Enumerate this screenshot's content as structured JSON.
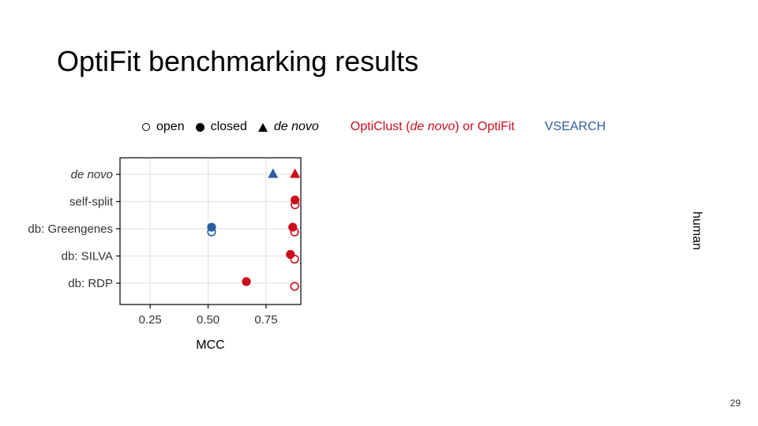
{
  "slide": {
    "title": "OptiFit benchmarking results",
    "page_number": "29"
  },
  "legend": {
    "open": "open",
    "closed": "closed",
    "de_novo": "de novo",
    "red_prefix": "OptiClust (",
    "red_italic": "de novo",
    "red_suffix": ") or OptiFit",
    "blue": "VSEARCH"
  },
  "colors": {
    "red": "#cc0f1c",
    "blue": "#2c5da3",
    "grid": "#e3e3e3",
    "axis": "#000000"
  },
  "chart_data": {
    "type": "scatter",
    "xlabel": "MCC",
    "ylabel": "",
    "xlim": [
      0.12,
      0.9
    ],
    "x_ticks": [
      "0.25",
      "0.50",
      "0.75"
    ],
    "x_tick_values": [
      0.25,
      0.5,
      0.75
    ],
    "categories": [
      "de novo",
      "self-split",
      "db: Greengenes",
      "db: SILVA",
      "db: RDP"
    ],
    "facet": "human",
    "grid": true,
    "series": [
      {
        "color": "red",
        "points": [
          {
            "category": "de novo",
            "mcc": 0.875,
            "shape": "triangle"
          },
          {
            "category": "self-split",
            "mcc": 0.875,
            "shape": "closed"
          },
          {
            "category": "self-split",
            "mcc": 0.875,
            "shape": "open"
          },
          {
            "category": "db: Greengenes",
            "mcc": 0.865,
            "shape": "closed"
          },
          {
            "category": "db: Greengenes",
            "mcc": 0.873,
            "shape": "open"
          },
          {
            "category": "db: SILVA",
            "mcc": 0.855,
            "shape": "closed"
          },
          {
            "category": "db: SILVA",
            "mcc": 0.873,
            "shape": "open"
          },
          {
            "category": "db: RDP",
            "mcc": 0.665,
            "shape": "closed"
          },
          {
            "category": "db: RDP",
            "mcc": 0.873,
            "shape": "open"
          }
        ]
      },
      {
        "color": "blue",
        "points": [
          {
            "category": "de novo",
            "mcc": 0.78,
            "shape": "triangle"
          },
          {
            "category": "db: Greengenes",
            "mcc": 0.515,
            "shape": "closed"
          },
          {
            "category": "db: Greengenes",
            "mcc": 0.515,
            "shape": "open"
          }
        ]
      }
    ]
  }
}
